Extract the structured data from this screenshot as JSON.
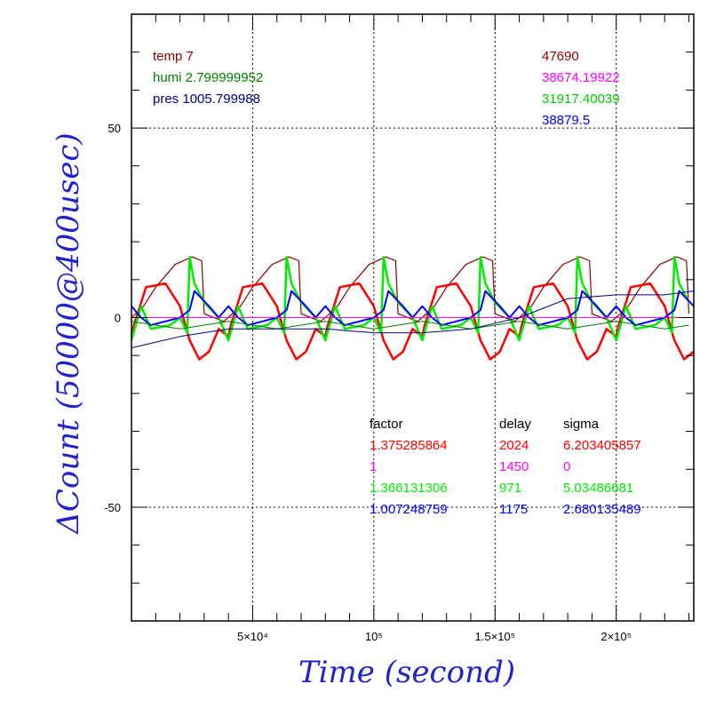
{
  "chart_data": {
    "type": "line",
    "xlabel": "Time (second)",
    "ylabel": "ΔCount (50000@400usec)",
    "xlim": [
      0,
      232000
    ],
    "ylim": [
      -80,
      80
    ],
    "x_ticks": [
      {
        "value": 50000,
        "label": "5×10⁴"
      },
      {
        "value": 100000,
        "label": "10⁵"
      },
      {
        "value": 150000,
        "label": "1.5×10⁵"
      },
      {
        "value": 200000,
        "label": "2×10⁵"
      }
    ],
    "y_ticks": [
      {
        "value": 50,
        "label": "50"
      },
      {
        "value": 0,
        "label": "0"
      },
      {
        "value": -50,
        "label": "-50"
      }
    ],
    "grid": true,
    "env_text": [
      {
        "text": "temp 7",
        "color": "#8b0000"
      },
      {
        "text": "humi 2.799999952",
        "color": "#007f00"
      },
      {
        "text": "pres 1005.799988",
        "color": "#00007f"
      }
    ],
    "counts_text": [
      {
        "text": "47690",
        "color": "#8b0000"
      },
      {
        "text": "38674.19922",
        "color": "#ff00ff"
      },
      {
        "text": "31917.40039",
        "color": "#00cc00"
      },
      {
        "text": "38879.5",
        "color": "#0000ff"
      }
    ],
    "table": {
      "headers": [
        "factor",
        "delay",
        "sigma"
      ],
      "rows": [
        {
          "factor": "1.375285864",
          "delay": "2024",
          "sigma": "6.203405857",
          "color": "#ff0000"
        },
        {
          "factor": "1",
          "delay": "1450",
          "sigma": "0",
          "color": "#ff00ff"
        },
        {
          "factor": "1.366131306",
          "delay": "971",
          "sigma": "5.03486681",
          "color": "#00ee00"
        },
        {
          "factor": "1.007248759",
          "delay": "1175",
          "sigma": "2.680135489",
          "color": "#0000ff"
        }
      ]
    },
    "period": 40000,
    "series": [
      {
        "color": "#8b0000",
        "width": 1.2,
        "x": [
          0,
          5000,
          10000,
          18000,
          25000,
          29000,
          30000,
          38000,
          40000
        ],
        "y": [
          0,
          3,
          8,
          14,
          16,
          15,
          1,
          -1,
          0
        ]
      },
      {
        "color": "#ff0000",
        "width": 2.5,
        "x": [
          0,
          1000,
          3000,
          6000,
          14000,
          20000,
          24000,
          28000,
          32000,
          36000,
          40000
        ],
        "y": [
          -5,
          -2,
          2,
          8,
          9,
          3,
          -6,
          -11,
          -9,
          -3,
          -5
        ]
      },
      {
        "color": "#00ee00",
        "width": 2.5,
        "x": [
          0,
          4000,
          6000,
          8000,
          16000,
          20000,
          23000,
          24000,
          26000,
          30000,
          36000,
          40000
        ],
        "y": [
          -6,
          3,
          0,
          -3,
          -2,
          0,
          -4,
          16,
          9,
          4,
          0,
          -6
        ]
      },
      {
        "color": "#0000ff",
        "width": 2.0,
        "x": [
          0,
          4000,
          8000,
          14000,
          20000,
          24000,
          26000,
          32000,
          36000,
          40000
        ],
        "y": [
          3,
          0,
          -2,
          -1,
          0,
          2,
          7,
          3,
          0,
          3
        ]
      },
      {
        "color": "#007f00",
        "width": 1.0,
        "x": [
          0,
          10000,
          20000,
          30000,
          40000
        ],
        "y": [
          -1,
          -2,
          -3,
          -2,
          -1
        ]
      },
      {
        "color": "#ff00ff",
        "width": 1.0,
        "x": [
          0,
          232000
        ],
        "y": [
          0,
          0
        ]
      },
      {
        "color": "#00007f",
        "width": 1.0,
        "x": [
          0,
          20000,
          40000,
          60000,
          80000,
          100000,
          120000,
          140000,
          160000,
          180000,
          200000,
          220000,
          232000
        ],
        "y": [
          -8,
          -5,
          -3,
          -3,
          -3,
          -4,
          -4,
          -3,
          0,
          5,
          6,
          6,
          7
        ]
      }
    ]
  }
}
